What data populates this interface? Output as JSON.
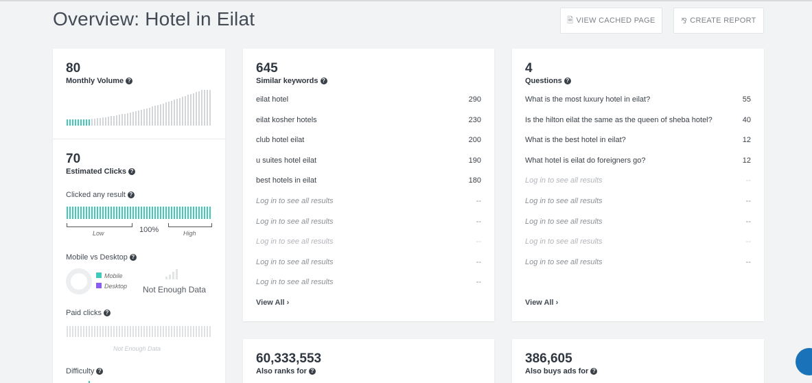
{
  "header": {
    "title": "Overview: Hotel in Eilat",
    "view_cached_label": "VIEW CACHED PAGE",
    "create_report_label": "CREATE REPORT"
  },
  "volume": {
    "value": "80",
    "label": "Monthly Volume"
  },
  "clicks": {
    "value": "70",
    "label": "Estimated Clicks",
    "clicked_any_label": "Clicked any result",
    "clicked_any_percent": "100%",
    "low_label": "Low",
    "high_label": "High",
    "mobile_desktop_label": "Mobile vs Desktop",
    "mobile_label": "Mobile",
    "desktop_label": "Desktop",
    "not_enough_data": "Not Enough Data",
    "paid_clicks_label": "Paid clicks",
    "paid_not_enough": "Not Enough Data",
    "difficulty_label": "Difficulty"
  },
  "similar": {
    "value": "645",
    "label": "Similar keywords",
    "rows": [
      {
        "kw": "eilat hotel",
        "vol": "290"
      },
      {
        "kw": "eilat kosher hotels",
        "vol": "230"
      },
      {
        "kw": "club hotel eilat",
        "vol": "200"
      },
      {
        "kw": "u suites hotel eilat",
        "vol": "190"
      },
      {
        "kw": "best hotels in eilat",
        "vol": "180"
      },
      {
        "kw": "Log in to see all results",
        "vol": "--"
      },
      {
        "kw": "Log in to see all results",
        "vol": "--"
      },
      {
        "kw": "Log in to see all results",
        "vol": "--"
      },
      {
        "kw": "Log in to see all results",
        "vol": "--"
      },
      {
        "kw": "Log in to see all results",
        "vol": "--"
      }
    ],
    "view_all": "View All"
  },
  "questions": {
    "value": "4",
    "label": "Questions",
    "rows": [
      {
        "kw": "What is the most luxury hotel in eilat?",
        "vol": "55"
      },
      {
        "kw": "Is the hilton eilat the same as the queen of sheba hotel?",
        "vol": "40"
      },
      {
        "kw": "What is the best hotel in eilat?",
        "vol": "12"
      },
      {
        "kw": "What hotel is eilat do foreigners go?",
        "vol": "12"
      },
      {
        "kw": "Log in to see all results",
        "vol": "--"
      },
      {
        "kw": "Log in to see all results",
        "vol": "--"
      },
      {
        "kw": "Log in to see all results",
        "vol": "--"
      },
      {
        "kw": "Log in to see all results",
        "vol": "--"
      },
      {
        "kw": "Log in to see all results",
        "vol": "--"
      }
    ],
    "view_all": "View All"
  },
  "also_ranks": {
    "value": "60,333,553",
    "label": "Also ranks for"
  },
  "also_buys": {
    "value": "386,605",
    "label": "Also buys ads for"
  },
  "colors": {
    "teal": "#3ec9b8",
    "purple": "#8a5cf0",
    "grey_bar": "#d3d6d9",
    "chat_blue": "#1a73b8"
  }
}
